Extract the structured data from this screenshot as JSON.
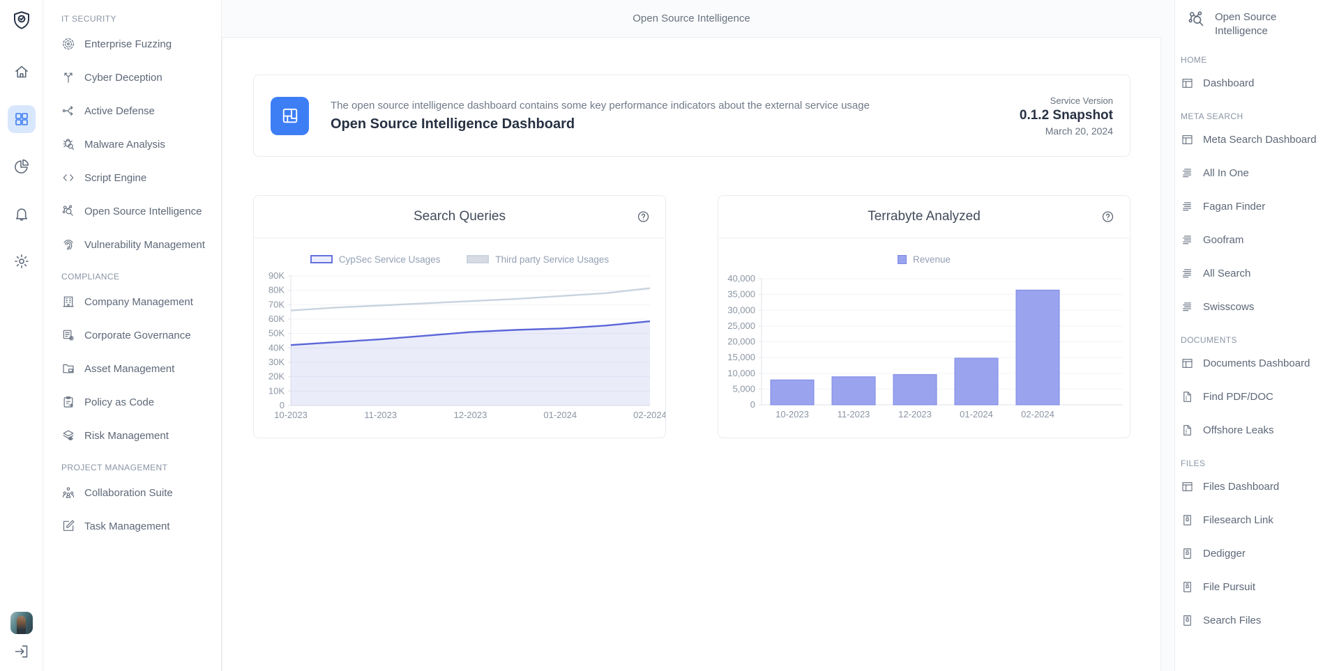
{
  "colors": {
    "accent_blue": "#3b7cf0",
    "rail_active_bg": "#d9e7fd",
    "info_icon_bg": "#3d7ef5",
    "line_purple": "#5b66d8",
    "line_gray": "#c8d3de",
    "bar_fill": "#9aa3ee"
  },
  "icon_rail": {
    "logo_icon": "shield-logo-icon",
    "items": [
      {
        "icon": "home-icon",
        "active": false
      },
      {
        "icon": "apps-grid-icon",
        "active": true
      },
      {
        "icon": "pie-chart-icon",
        "active": false
      },
      {
        "icon": "bell-icon",
        "active": false
      },
      {
        "icon": "gear-icon",
        "active": false
      }
    ],
    "logout_icon": "logout-icon"
  },
  "nav_sidebar": {
    "sections": [
      {
        "label": "IT SECURITY",
        "items": [
          {
            "label": "Enterprise Fuzzing",
            "icon": "fuzzing-target-icon"
          },
          {
            "label": "Cyber Deception",
            "icon": "cyber-deception-icon"
          },
          {
            "label": "Active Defense",
            "icon": "active-defense-icon"
          },
          {
            "label": "Malware Analysis",
            "icon": "malware-analysis-icon"
          },
          {
            "label": "Script Engine",
            "icon": "script-engine-icon"
          },
          {
            "label": "Open Source Intelligence",
            "icon": "osint-network-icon"
          },
          {
            "label": "Vulnerability Management",
            "icon": "vulnerability-fingerprint-icon"
          }
        ]
      },
      {
        "label": "COMPLIANCE",
        "items": [
          {
            "label": "Company Management",
            "icon": "company-building-icon"
          },
          {
            "label": "Corporate Governance",
            "icon": "governance-list-gear-icon"
          },
          {
            "label": "Asset Management",
            "icon": "asset-folder-icon"
          },
          {
            "label": "Policy as Code",
            "icon": "policy-clipboard-icon"
          },
          {
            "label": "Risk Management",
            "icon": "risk-layers-eye-icon"
          }
        ]
      },
      {
        "label": "PROJECT MANAGEMENT",
        "items": [
          {
            "label": "Collaboration Suite",
            "icon": "collaboration-people-icon"
          },
          {
            "label": "Task Management",
            "icon": "task-pen-icon"
          }
        ]
      }
    ]
  },
  "header": {
    "title": "Open Source Intelligence"
  },
  "info_card": {
    "description": "The open source intelligence dashboard contains some key performance indicators about the external service usage",
    "title": "Open Source Intelligence Dashboard",
    "version_label": "Service Version",
    "version": "0.1.2 Snapshot",
    "date": "March 20, 2024"
  },
  "chart_data": [
    {
      "type": "area",
      "title": "Search Queries",
      "x_labels": [
        "10-2023",
        "11-2023",
        "12-2023",
        "01-2024",
        "02-2024"
      ],
      "series": [
        {
          "name": "CypSec Service Usages",
          "values": [
            42000,
            44000,
            46000,
            48500,
            51000,
            52500,
            53500,
            55500,
            58500
          ],
          "color": "#5b66d8",
          "area_fill": "rgba(95,106,214,0.13)",
          "legend_fill": "#ecedfb",
          "legend_border": "#6471df"
        },
        {
          "name": "Third party Service Usages",
          "values": [
            66000,
            68000,
            69500,
            71000,
            72500,
            74000,
            76000,
            78000,
            81500
          ],
          "color": "#c8d3de",
          "legend_fill": "#d6dce4",
          "legend_border": "#cbd3dc"
        }
      ],
      "ylim": [
        0,
        90000
      ],
      "ytick_step": 10000,
      "ytick_format": "K",
      "grid": true,
      "legend_position": "top"
    },
    {
      "type": "bar",
      "title": "Terrabyte Analyzed",
      "categories": [
        "10-2023",
        "11-2023",
        "12-2023",
        "01-2024",
        "02-2024"
      ],
      "series": [
        {
          "name": "Revenue",
          "values": [
            7900,
            8900,
            9600,
            14800,
            36400
          ],
          "color": "#9aa3ee",
          "border": "#7d87e6"
        }
      ],
      "ylim": [
        0,
        40000
      ],
      "ytick_step": 5000,
      "ytick_format": "comma",
      "grid": true,
      "legend_position": "top"
    }
  ],
  "right_sidebar": {
    "title": "Open Source Intelligence",
    "icon": "osint-network-icon",
    "sections": [
      {
        "label": "HOME",
        "items": [
          {
            "label": "Dashboard",
            "icon": "window-dashboard-icon"
          }
        ]
      },
      {
        "label": "META SEARCH",
        "items": [
          {
            "label": "Meta Search Dashboard",
            "icon": "window-dashboard-icon"
          },
          {
            "label": "All In One",
            "icon": "list-lines-icon"
          },
          {
            "label": "Fagan Finder",
            "icon": "list-lines-icon"
          },
          {
            "label": "Goofram",
            "icon": "list-lines-icon"
          },
          {
            "label": "All Search",
            "icon": "list-lines-icon"
          },
          {
            "label": "Swisscows",
            "icon": "list-lines-icon"
          }
        ]
      },
      {
        "label": "DOCUMENTS",
        "items": [
          {
            "label": "Documents Dashboard",
            "icon": "window-dashboard-icon"
          },
          {
            "label": "Find PDF/DOC",
            "icon": "document-icon"
          },
          {
            "label": "Offshore Leaks",
            "icon": "document-icon"
          }
        ]
      },
      {
        "label": "FILES",
        "items": [
          {
            "label": "Files Dashboard",
            "icon": "window-dashboard-icon"
          },
          {
            "label": "Filesearch Link",
            "icon": "file-icon"
          },
          {
            "label": "Dedigger",
            "icon": "file-icon"
          },
          {
            "label": "File Pursuit",
            "icon": "file-icon"
          },
          {
            "label": "Search Files",
            "icon": "file-icon"
          }
        ]
      }
    ]
  }
}
